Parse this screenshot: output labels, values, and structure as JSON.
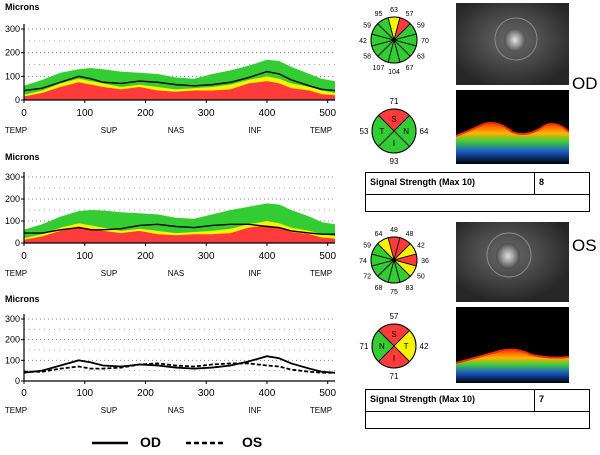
{
  "chart_data": [
    {
      "type": "area",
      "name": "od_tsnit",
      "ylabel": "Microns",
      "ylim": [
        0,
        300
      ],
      "xlim": [
        0,
        512
      ],
      "xticks": [
        0,
        100,
        200,
        300,
        400,
        500
      ],
      "yticks": [
        0,
        100,
        200,
        300
      ],
      "region_labels": [
        "TEMP",
        "SUP",
        "NAS",
        "INF",
        "TEMP"
      ],
      "x": [
        0,
        30,
        60,
        90,
        110,
        130,
        160,
        190,
        220,
        250,
        280,
        310,
        340,
        370,
        400,
        420,
        440,
        470,
        490,
        512
      ],
      "bands": {
        "red_upper": [
          15,
          30,
          55,
          75,
          65,
          55,
          45,
          55,
          40,
          35,
          40,
          40,
          45,
          70,
          80,
          70,
          50,
          40,
          25,
          20
        ],
        "yellow_upper": [
          22,
          40,
          70,
          90,
          80,
          70,
          55,
          65,
          55,
          45,
          50,
          55,
          65,
          85,
          100,
          90,
          70,
          55,
          40,
          30
        ],
        "green_upper": [
          60,
          85,
          115,
          130,
          135,
          130,
          120,
          115,
          110,
          95,
          90,
          110,
          125,
          145,
          170,
          165,
          140,
          110,
          90,
          80
        ]
      },
      "series": [
        {
          "name": "OD",
          "values": [
            40,
            50,
            75,
            100,
            90,
            75,
            70,
            80,
            75,
            65,
            60,
            65,
            75,
            95,
            120,
            110,
            85,
            60,
            45,
            40
          ]
        }
      ],
      "grid": true
    },
    {
      "type": "area",
      "name": "os_tsnit",
      "ylabel": "Microns",
      "ylim": [
        0,
        300
      ],
      "xlim": [
        0,
        512
      ],
      "xticks": [
        0,
        100,
        200,
        300,
        400,
        500
      ],
      "yticks": [
        0,
        100,
        200,
        300
      ],
      "region_labels": [
        "TEMP",
        "SUP",
        "NAS",
        "INF",
        "TEMP"
      ],
      "x": [
        0,
        30,
        60,
        90,
        110,
        130,
        160,
        190,
        220,
        250,
        280,
        310,
        340,
        370,
        400,
        420,
        440,
        470,
        490,
        512
      ],
      "bands": {
        "red_upper": [
          15,
          30,
          55,
          75,
          65,
          55,
          45,
          55,
          40,
          35,
          40,
          40,
          45,
          70,
          80,
          70,
          50,
          40,
          25,
          20
        ],
        "yellow_upper": [
          22,
          40,
          70,
          90,
          80,
          70,
          55,
          65,
          55,
          45,
          50,
          55,
          65,
          85,
          100,
          90,
          70,
          55,
          40,
          30
        ],
        "green_upper": [
          60,
          85,
          120,
          145,
          150,
          148,
          140,
          135,
          130,
          115,
          110,
          130,
          150,
          165,
          180,
          175,
          150,
          120,
          95,
          85
        ]
      },
      "series": [
        {
          "name": "OS",
          "values": [
            45,
            45,
            60,
            70,
            60,
            60,
            65,
            80,
            85,
            75,
            70,
            80,
            85,
            85,
            75,
            70,
            55,
            45,
            40,
            40
          ]
        }
      ],
      "grid": true
    },
    {
      "type": "line",
      "name": "od_os_overlay",
      "ylabel": "Microns",
      "ylim": [
        0,
        300
      ],
      "xlim": [
        0,
        512
      ],
      "xticks": [
        0,
        100,
        200,
        300,
        400,
        500
      ],
      "yticks": [
        0,
        100,
        200,
        300
      ],
      "region_labels": [
        "TEMP",
        "SUP",
        "NAS",
        "INF",
        "TEMP"
      ],
      "x": [
        0,
        30,
        60,
        90,
        110,
        130,
        160,
        190,
        220,
        250,
        280,
        310,
        340,
        370,
        400,
        420,
        440,
        470,
        490,
        512
      ],
      "series": [
        {
          "name": "OD",
          "style": "solid",
          "values": [
            40,
            50,
            75,
            100,
            90,
            75,
            70,
            80,
            75,
            65,
            60,
            65,
            75,
            95,
            120,
            110,
            85,
            60,
            45,
            40
          ]
        },
        {
          "name": "OS",
          "style": "dashed",
          "values": [
            45,
            45,
            60,
            70,
            60,
            60,
            65,
            80,
            85,
            75,
            70,
            80,
            85,
            85,
            75,
            70,
            55,
            45,
            40,
            40
          ]
        }
      ],
      "grid": true
    },
    {
      "type": "pie",
      "name": "od_clock_hours",
      "values": [
        63,
        57,
        59,
        70,
        63,
        67,
        104,
        107,
        58,
        42,
        59,
        95
      ],
      "colors": [
        "#f5f500",
        "#ff3b3b",
        "#33cc33",
        "#33cc33",
        "#33cc33",
        "#33cc33",
        "#33cc33",
        "#33cc33",
        "#33cc33",
        "#33cc33",
        "#33cc33",
        "#33cc33"
      ]
    },
    {
      "type": "pie",
      "name": "od_quadrants",
      "labels": [
        "S",
        "N",
        "I",
        "T"
      ],
      "values": [
        71,
        64,
        93,
        53
      ],
      "colors": [
        "#ff3b3b",
        "#33cc33",
        "#33cc33",
        "#33cc33"
      ]
    },
    {
      "type": "pie",
      "name": "os_clock_hours",
      "values": [
        48,
        48,
        42,
        36,
        50,
        83,
        75,
        68,
        72,
        74,
        59,
        64
      ],
      "colors": [
        "#ff3b3b",
        "#ff3b3b",
        "#f5f500",
        "#ff3b3b",
        "#f5f500",
        "#33cc33",
        "#33cc33",
        "#33cc33",
        "#33cc33",
        "#33cc33",
        "#33cc33",
        "#f5f500"
      ]
    },
    {
      "type": "pie",
      "name": "os_quadrants",
      "labels": [
        "S",
        "T",
        "I",
        "N"
      ],
      "values": [
        57,
        42,
        71,
        71
      ],
      "colors": [
        "#ff3b3b",
        "#f5f500",
        "#ff3b3b",
        "#33cc33"
      ]
    }
  ],
  "legend": {
    "od": "OD",
    "os": "OS"
  },
  "od": {
    "label": "OD",
    "signal_label": "Signal Strength (Max 10)",
    "signal_value": "8"
  },
  "os": {
    "label": "OS",
    "signal_label": "Signal Strength (Max 10)",
    "signal_value": "7"
  },
  "colors": {
    "green": "#33cc33",
    "yellow": "#f5f500",
    "red": "#ff3b3b",
    "line": "#000000"
  }
}
